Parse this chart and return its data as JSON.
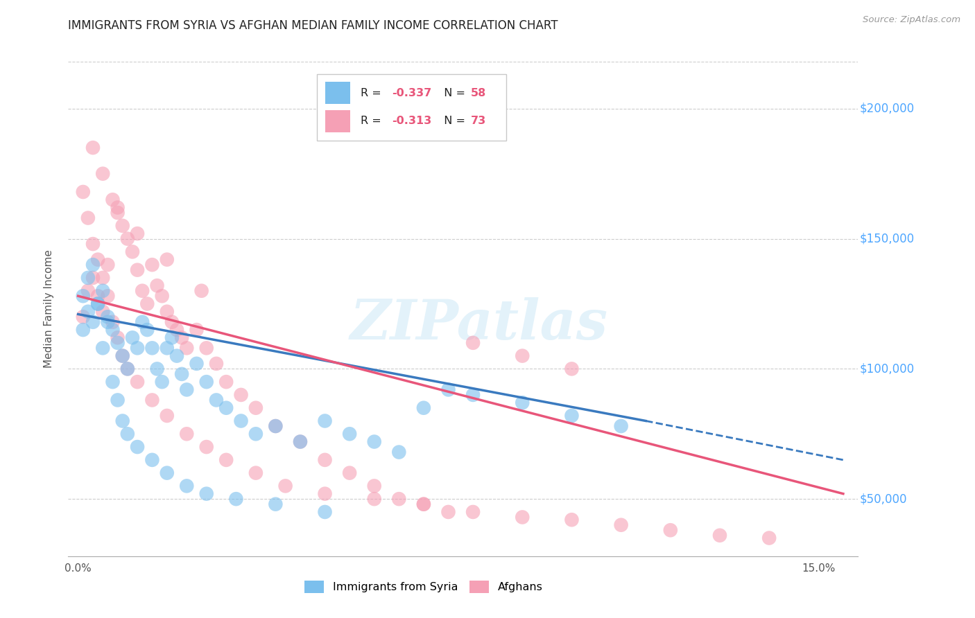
{
  "title": "IMMIGRANTS FROM SYRIA VS AFGHAN MEDIAN FAMILY INCOME CORRELATION CHART",
  "source": "Source: ZipAtlas.com",
  "ylabel": "Median Family Income",
  "xlim": [
    -0.002,
    0.158
  ],
  "ylim": [
    28000,
    218000
  ],
  "yticks": [
    50000,
    100000,
    150000,
    200000
  ],
  "ytick_labels": [
    "$50,000",
    "$100,000",
    "$150,000",
    "$200,000"
  ],
  "xtick_positions": [
    0.0,
    0.15
  ],
  "xtick_labels": [
    "0.0%",
    "15.0%"
  ],
  "syria_color": "#7BBFED",
  "afghan_color": "#F5A0B5",
  "syria_line_color": "#3a7abf",
  "afghan_line_color": "#e8567a",
  "syria_R": -0.337,
  "syria_N": 58,
  "afghan_R": -0.313,
  "afghan_N": 73,
  "watermark": "ZIPatlas",
  "background_color": "#ffffff",
  "grid_color": "#cccccc",
  "yaxis_label_color": "#4da6ff",
  "syria_line_x0": 0.0,
  "syria_line_y0": 121000,
  "syria_line_x1": 0.115,
  "syria_line_y1": 80000,
  "syria_line_dash_x1": 0.155,
  "syria_line_dash_y1": 65000,
  "afghan_line_x0": 0.0,
  "afghan_line_y0": 128000,
  "afghan_line_x1": 0.155,
  "afghan_line_y1": 52000,
  "syria_scatter_x": [
    0.001,
    0.002,
    0.003,
    0.004,
    0.005,
    0.006,
    0.007,
    0.008,
    0.009,
    0.01,
    0.011,
    0.012,
    0.013,
    0.014,
    0.015,
    0.016,
    0.017,
    0.018,
    0.019,
    0.02,
    0.021,
    0.022,
    0.024,
    0.026,
    0.028,
    0.03,
    0.033,
    0.036,
    0.04,
    0.045,
    0.05,
    0.055,
    0.06,
    0.065,
    0.07,
    0.08,
    0.09,
    0.1,
    0.11,
    0.001,
    0.002,
    0.003,
    0.004,
    0.005,
    0.006,
    0.007,
    0.008,
    0.009,
    0.01,
    0.012,
    0.015,
    0.018,
    0.022,
    0.026,
    0.032,
    0.04,
    0.05,
    0.075
  ],
  "syria_scatter_y": [
    115000,
    122000,
    118000,
    125000,
    130000,
    120000,
    115000,
    110000,
    105000,
    100000,
    112000,
    108000,
    118000,
    115000,
    108000,
    100000,
    95000,
    108000,
    112000,
    105000,
    98000,
    92000,
    102000,
    95000,
    88000,
    85000,
    80000,
    75000,
    78000,
    72000,
    80000,
    75000,
    72000,
    68000,
    85000,
    90000,
    87000,
    82000,
    78000,
    128000,
    135000,
    140000,
    125000,
    108000,
    118000,
    95000,
    88000,
    80000,
    75000,
    70000,
    65000,
    60000,
    55000,
    52000,
    50000,
    48000,
    45000,
    92000
  ],
  "afghan_scatter_x": [
    0.001,
    0.002,
    0.003,
    0.004,
    0.005,
    0.006,
    0.007,
    0.008,
    0.009,
    0.01,
    0.011,
    0.012,
    0.013,
    0.014,
    0.015,
    0.016,
    0.017,
    0.018,
    0.019,
    0.02,
    0.021,
    0.022,
    0.024,
    0.026,
    0.028,
    0.03,
    0.033,
    0.036,
    0.04,
    0.045,
    0.05,
    0.055,
    0.06,
    0.065,
    0.07,
    0.075,
    0.08,
    0.09,
    0.1,
    0.001,
    0.002,
    0.003,
    0.004,
    0.005,
    0.006,
    0.007,
    0.008,
    0.009,
    0.01,
    0.012,
    0.015,
    0.018,
    0.022,
    0.026,
    0.03,
    0.036,
    0.042,
    0.05,
    0.06,
    0.07,
    0.08,
    0.09,
    0.1,
    0.11,
    0.12,
    0.13,
    0.14,
    0.003,
    0.005,
    0.008,
    0.012,
    0.018,
    0.025
  ],
  "afghan_scatter_y": [
    120000,
    130000,
    135000,
    128000,
    122000,
    140000,
    165000,
    160000,
    155000,
    150000,
    145000,
    138000,
    130000,
    125000,
    140000,
    132000,
    128000,
    122000,
    118000,
    115000,
    112000,
    108000,
    115000,
    108000,
    102000,
    95000,
    90000,
    85000,
    78000,
    72000,
    65000,
    60000,
    55000,
    50000,
    48000,
    45000,
    110000,
    105000,
    100000,
    168000,
    158000,
    148000,
    142000,
    135000,
    128000,
    118000,
    112000,
    105000,
    100000,
    95000,
    88000,
    82000,
    75000,
    70000,
    65000,
    60000,
    55000,
    52000,
    50000,
    48000,
    45000,
    43000,
    42000,
    40000,
    38000,
    36000,
    35000,
    185000,
    175000,
    162000,
    152000,
    142000,
    130000
  ]
}
